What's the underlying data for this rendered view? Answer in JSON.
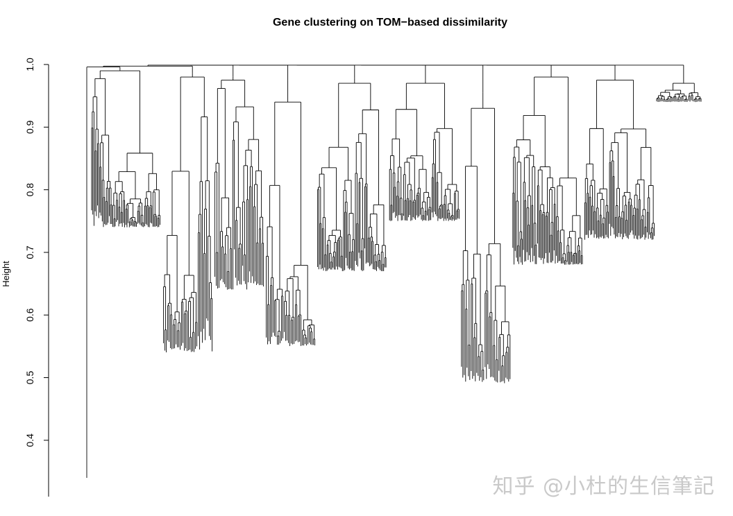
{
  "chart_data": {
    "type": "dendrogram",
    "title": "Gene clustering on TOM−based dissimilarity",
    "ylabel": "Height",
    "xlabel": "",
    "ylim": [
      0.31,
      1.0
    ],
    "yticks": [
      0.4,
      0.5,
      0.6,
      0.7,
      0.8,
      0.9,
      1.0
    ],
    "ytick_labels": [
      "0.4",
      "0.5",
      "0.6",
      "0.7",
      "0.8",
      "0.9",
      "1.0"
    ],
    "grid": false,
    "line_color": "#000000",
    "root_height": 0.999,
    "trunk": {
      "top": 0.995,
      "bottom": 0.34
    },
    "modules": [
      {
        "join": 0.992,
        "top": 0.99,
        "min": 0.74,
        "dense": true
      },
      {
        "join": 0.986,
        "top": 0.98,
        "min": 0.54,
        "dense": false
      },
      {
        "join": 0.981,
        "top": 0.975,
        "min": 0.64,
        "dense": false
      },
      {
        "join": 0.974,
        "top": 0.94,
        "min": 0.55,
        "dense": false
      },
      {
        "join": 0.978,
        "top": 0.97,
        "min": 0.67,
        "dense": true
      },
      {
        "join": 0.975,
        "top": 0.97,
        "min": 0.75,
        "dense": true
      },
      {
        "join": 0.955,
        "top": 0.93,
        "min": 0.49,
        "dense": false
      },
      {
        "join": 0.985,
        "top": 0.98,
        "min": 0.68,
        "dense": true
      },
      {
        "join": 0.98,
        "top": 0.975,
        "min": 0.72,
        "dense": true
      },
      {
        "join": 0.972,
        "top": 0.97,
        "min": 0.94,
        "dense": false
      }
    ]
  },
  "watermark": "知乎 @小杜的生信筆記"
}
